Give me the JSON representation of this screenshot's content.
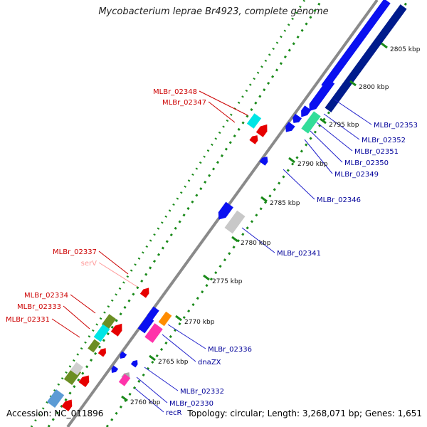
{
  "title": "Mycobacterium leprae Br4923, complete genome",
  "accession": "Accession: NC_011896",
  "summary": "Topology: circular; Length: 3,268,071 bp; Genes: 1,651",
  "colors": {
    "forward_label": "#cc0000",
    "reverse_label": "#000099",
    "rna_label": "#ff9999",
    "backbone": "#8a8a8a",
    "tick": "#1a8a1a"
  },
  "kbp_ticks": [
    "2760 kbp",
    "2765 kbp",
    "2770 kbp",
    "2775 kbp",
    "2780 kbp",
    "2785 kbp",
    "2790 kbp",
    "2795 kbp",
    "2800 kbp",
    "2805 kbp"
  ],
  "forward_genes": [
    "MLBr_02348",
    "MLBr_02347",
    "MLBr_02337",
    "serV",
    "MLBr_02334",
    "MLBr_02333",
    "MLBr_02331"
  ],
  "reverse_genes": [
    "MLBr_02353",
    "MLBr_02352",
    "MLBr_02351",
    "MLBr_02350",
    "MLBr_02349",
    "MLBr_02346",
    "MLBr_02341",
    "MLBr_02336",
    "dnaZX",
    "MLBr_02332",
    "MLBr_02330",
    "recR"
  ]
}
